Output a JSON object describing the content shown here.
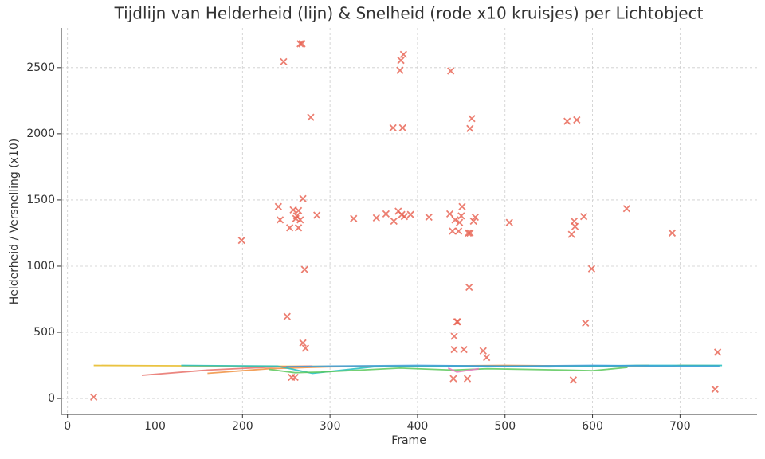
{
  "chart_data": {
    "type": "line",
    "title": "Tijdlijn van Helderheid (lijn) & Snelheid (rode x10 kruisjes) per Lichtobject",
    "x_label": "Frame",
    "y_label": "Helderheid / Versnelling (x10)",
    "xlim": [
      -7,
      788
    ],
    "ylim": [
      -120,
      2800
    ],
    "xticks": [
      0,
      100,
      200,
      300,
      400,
      500,
      600,
      700
    ],
    "yticks": [
      0,
      500,
      1000,
      1500,
      2000,
      2500
    ],
    "grid": true,
    "series": [
      {
        "color": "#e6b820",
        "x": [
          30,
          100,
          200,
          300,
          400,
          500,
          600,
          690,
          700,
          745
        ],
        "values": [
          250,
          248,
          245,
          243,
          245,
          248,
          247,
          245,
          250,
          248
        ]
      },
      {
        "color": "#e8716a",
        "x": [
          85,
          160,
          240,
          280
        ],
        "values": [
          175,
          215,
          240,
          245
        ]
      },
      {
        "color": "#f09040",
        "x": [
          160,
          230,
          300,
          400,
          500,
          600,
          665
        ],
        "values": [
          190,
          225,
          240,
          245,
          250,
          245,
          250
        ]
      },
      {
        "color": "#20c0c0",
        "x": [
          130,
          240,
          280,
          350,
          450,
          550,
          650,
          748
        ],
        "values": [
          250,
          245,
          190,
          240,
          245,
          240,
          250,
          250
        ]
      },
      {
        "color": "#5cc85c",
        "x": [
          230,
          260,
          290,
          380,
          440,
          480,
          570,
          600,
          640
        ],
        "values": [
          220,
          195,
          200,
          230,
          215,
          225,
          215,
          210,
          235
        ]
      },
      {
        "color": "#e879c0",
        "x": [
          435,
          445,
          460,
          470
        ],
        "values": [
          230,
          200,
          215,
          225
        ]
      },
      {
        "color": "#3aa0e0",
        "x": [
          250,
          300,
          400,
          500,
          600,
          700,
          745
        ],
        "values": [
          240,
          245,
          250,
          245,
          250,
          245,
          245
        ]
      }
    ],
    "points": {
      "color": "#e8604f",
      "x": [
        30,
        199,
        241,
        243,
        247,
        251,
        254,
        256,
        258,
        260,
        261,
        262,
        264,
        264,
        266,
        266,
        268,
        269,
        269,
        271,
        272,
        278,
        285,
        327,
        353,
        364,
        372,
        373,
        378,
        380,
        381,
        382,
        383,
        384,
        385,
        392,
        413,
        437,
        438,
        440,
        441,
        442,
        442,
        443,
        445,
        446,
        447,
        448,
        450,
        451,
        453,
        457,
        458,
        459,
        460,
        460,
        462,
        464,
        466,
        475,
        479,
        505,
        571,
        576,
        578,
        579,
        580,
        582,
        590,
        592,
        599,
        639,
        691,
        740,
        743
      ],
      "values": [
        10,
        1195,
        1450,
        1350,
        2545,
        620,
        1290,
        160,
        1425,
        160,
        1360,
        1380,
        1420,
        1290,
        1350,
        2680,
        2680,
        1510,
        420,
        975,
        380,
        2125,
        1385,
        1360,
        1365,
        1395,
        2045,
        1340,
        1415,
        2480,
        2555,
        1390,
        2045,
        2600,
        1375,
        1390,
        1370,
        1395,
        2475,
        1265,
        150,
        470,
        370,
        1350,
        580,
        580,
        1265,
        1330,
        1380,
        1450,
        370,
        150,
        1250,
        840,
        2040,
        1250,
        2115,
        1340,
        1370,
        360,
        310,
        1330,
        2095,
        1240,
        140,
        1340,
        1300,
        2105,
        1375,
        570,
        980,
        1435,
        1250,
        70,
        350
      ]
    }
  }
}
